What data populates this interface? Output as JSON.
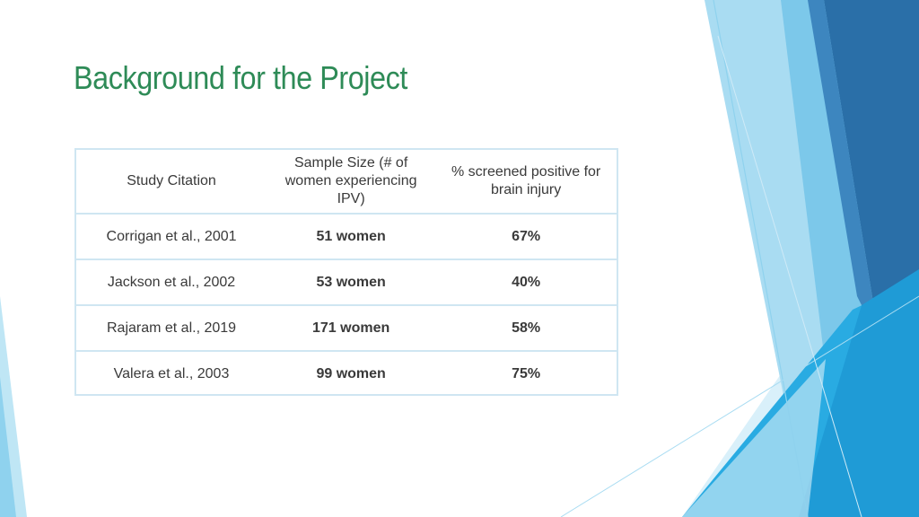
{
  "slide": {
    "title": "Background for the Project"
  },
  "table": {
    "headers": [
      "Study Citation",
      "Sample Size (# of women experiencing IPV)",
      "% screened positive for brain injury"
    ],
    "rows": [
      {
        "citation": "Corrigan et al., 2001",
        "sample": "51 women",
        "percent": "67%"
      },
      {
        "citation": "Jackson et al., 2002",
        "sample": "53 women",
        "percent": "40%"
      },
      {
        "citation": "Rajaram et al., 2019",
        "sample": "171 women",
        "percent": "58%"
      },
      {
        "citation": "Valera et al., 2003",
        "sample": "99 women",
        "percent": "75%"
      }
    ]
  },
  "colors": {
    "title": "#2e8b57",
    "table_border": "#cfe6f2",
    "accent_light": "#a9dcf2",
    "accent_mid": "#29abe2",
    "accent_dark": "#2a6fa8"
  }
}
